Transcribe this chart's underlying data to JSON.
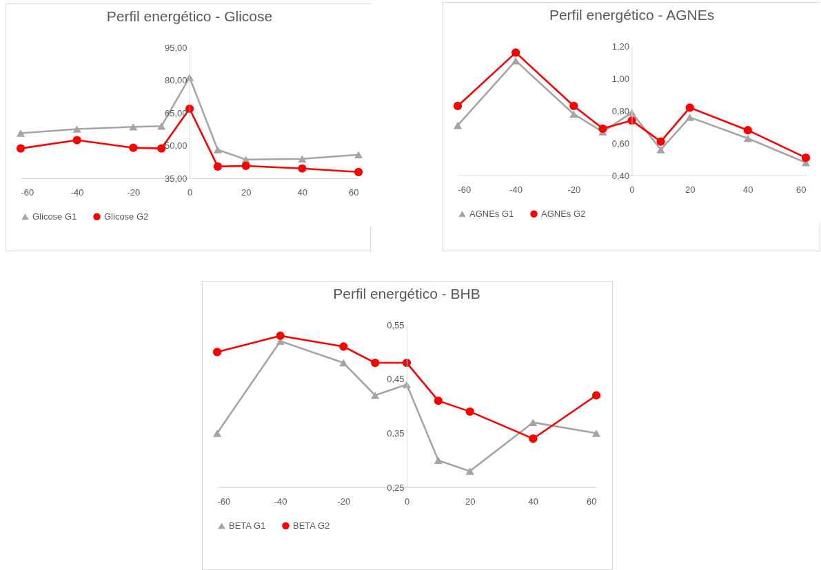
{
  "chart_data": [
    {
      "type": "line",
      "title": "Perfil energético - Glicose",
      "x": [
        -60,
        -40,
        -20,
        -10,
        0,
        10,
        20,
        40,
        60
      ],
      "xlim": [
        -60,
        60
      ],
      "xticks": [
        -60,
        -40,
        -20,
        0,
        20,
        40,
        60
      ],
      "ylim": [
        35,
        95
      ],
      "yticks": [
        {
          "value": 35,
          "label": "35,00"
        },
        {
          "value": 50,
          "label": "50,00"
        },
        {
          "value": 65,
          "label": "65,00"
        },
        {
          "value": 80,
          "label": "80,00"
        },
        {
          "value": 95,
          "label": "95,00"
        }
      ],
      "grid": false,
      "legend": "bottom",
      "series": [
        {
          "name": "Glicose G1",
          "color": "#a5a5a5",
          "marker": "triangle",
          "values": [
            55.7,
            57.6,
            58.6,
            58.9,
            81.3,
            48.1,
            43.6,
            43.9,
            45.8
          ]
        },
        {
          "name": "Glicose G2",
          "color": "#ff0000",
          "marker": "circle",
          "values": [
            48.7,
            52.5,
            49.0,
            48.7,
            66.9,
            40.4,
            40.7,
            39.5,
            37.9
          ]
        }
      ]
    },
    {
      "type": "line",
      "title": "Perfil energético - AGNEs",
      "x": [
        -60,
        -40,
        -20,
        -10,
        0,
        10,
        20,
        40,
        60
      ],
      "xlim": [
        -60,
        60
      ],
      "xticks": [
        -60,
        -40,
        -20,
        0,
        20,
        40,
        60
      ],
      "ylim": [
        0.4,
        1.2
      ],
      "yticks": [
        {
          "value": 0.4,
          "label": "0,40"
        },
        {
          "value": 0.6,
          "label": "0,60"
        },
        {
          "value": 0.8,
          "label": "0,80"
        },
        {
          "value": 1.0,
          "label": "1,00"
        },
        {
          "value": 1.2,
          "label": "1,20"
        }
      ],
      "grid": false,
      "legend": "bottom",
      "series": [
        {
          "name": "AGNEs G1",
          "color": "#a5a5a5",
          "marker": "triangle",
          "values": [
            0.71,
            1.11,
            0.78,
            0.67,
            0.79,
            0.56,
            0.76,
            0.63,
            0.48
          ]
        },
        {
          "name": "AGNEs G2",
          "color": "#ff0000",
          "marker": "circle",
          "values": [
            0.83,
            1.16,
            0.83,
            0.69,
            0.74,
            0.61,
            0.82,
            0.68,
            0.51
          ]
        }
      ]
    },
    {
      "type": "line",
      "title": "Perfil energético - BHB",
      "x": [
        -60,
        -40,
        -20,
        -10,
        0,
        10,
        20,
        40,
        60
      ],
      "xlim": [
        -60,
        60
      ],
      "xticks": [
        -60,
        -40,
        -20,
        0,
        20,
        40,
        60
      ],
      "ylim": [
        0.25,
        0.55
      ],
      "yticks": [
        {
          "value": 0.25,
          "label": "0,25"
        },
        {
          "value": 0.35,
          "label": "0,35"
        },
        {
          "value": 0.45,
          "label": "0,45"
        },
        {
          "value": 0.55,
          "label": "0,55"
        }
      ],
      "grid": false,
      "legend": "bottom",
      "series": [
        {
          "name": "BETA G1",
          "color": "#a5a5a5",
          "marker": "triangle",
          "values": [
            0.35,
            0.52,
            0.48,
            0.42,
            0.44,
            0.3,
            0.28,
            0.37,
            0.35
          ]
        },
        {
          "name": "BETA G2",
          "color": "#ff0000",
          "marker": "circle",
          "values": [
            0.5,
            0.53,
            0.51,
            0.48,
            0.48,
            0.41,
            0.39,
            0.34,
            0.42
          ]
        }
      ]
    }
  ]
}
